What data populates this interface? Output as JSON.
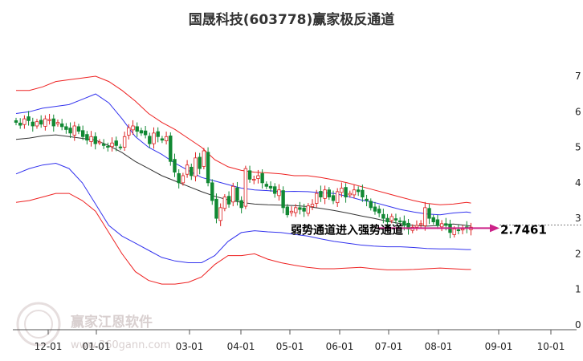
{
  "chart_data": {
    "type": "line",
    "title": "国晟科技(603778)赢家极反通道",
    "xlabel": "",
    "ylabel": "",
    "ylim": [
      0,
      7.25
    ],
    "y_ticks": [
      "0",
      "1",
      "2",
      "3",
      "4",
      "5",
      "6",
      "7"
    ],
    "x_ticks": [
      "12-01",
      "01-01",
      "03-01",
      "04-01",
      "05-01",
      "06-01",
      "07-01",
      "08-01",
      "09-01",
      "10-01"
    ],
    "x": [
      0,
      6,
      12,
      18,
      24,
      30,
      36,
      42,
      48,
      54,
      60,
      66,
      72,
      78,
      84,
      90,
      96,
      102,
      108,
      114,
      120,
      126,
      132,
      138,
      144,
      150,
      156,
      162,
      168,
      174,
      180,
      186,
      192,
      198,
      204,
      206
    ],
    "series": [
      {
        "color": "#333333",
        "values": [
          5.22,
          5.26,
          5.32,
          5.35,
          5.3,
          5.25,
          5.2,
          5.05,
          4.85,
          4.6,
          4.4,
          4.2,
          4.05,
          3.9,
          3.75,
          3.62,
          3.52,
          3.45,
          3.4,
          3.38,
          3.37,
          3.36,
          3.33,
          3.28,
          3.22,
          3.15,
          3.07,
          3.0,
          2.92,
          2.85,
          2.8,
          2.78,
          2.8,
          2.84,
          2.8,
          2.78
        ]
      },
      {
        "color": "#3333ee",
        "values": [
          5.95,
          6.0,
          6.1,
          6.15,
          6.2,
          6.35,
          6.5,
          6.25,
          5.8,
          5.3,
          5.0,
          4.8,
          4.55,
          4.35,
          4.15,
          4.05,
          3.95,
          3.85,
          3.8,
          3.78,
          3.75,
          3.76,
          3.75,
          3.72,
          3.7,
          3.62,
          3.52,
          3.45,
          3.35,
          3.25,
          3.18,
          3.12,
          3.1,
          3.15,
          3.18,
          3.16
        ]
      },
      {
        "color": "#3333ee",
        "values": [
          4.25,
          4.4,
          4.5,
          4.55,
          4.4,
          4.0,
          3.4,
          2.8,
          2.5,
          2.3,
          2.1,
          1.9,
          1.8,
          1.75,
          1.75,
          1.95,
          2.35,
          2.6,
          2.65,
          2.62,
          2.6,
          2.55,
          2.5,
          2.42,
          2.35,
          2.3,
          2.25,
          2.22,
          2.2,
          2.2,
          2.18,
          2.15,
          2.14,
          2.14,
          2.12,
          2.12
        ]
      },
      {
        "color": "#ee2222",
        "values": [
          6.6,
          6.6,
          6.7,
          6.85,
          6.9,
          6.95,
          7.0,
          6.85,
          6.6,
          6.3,
          5.95,
          5.7,
          5.5,
          5.25,
          5.0,
          4.65,
          4.45,
          4.35,
          4.3,
          4.28,
          4.25,
          4.2,
          4.2,
          4.15,
          4.08,
          4.0,
          3.9,
          3.8,
          3.7,
          3.6,
          3.5,
          3.42,
          3.38,
          3.4,
          3.45,
          3.43
        ]
      },
      {
        "color": "#ee2222",
        "values": [
          3.45,
          3.5,
          3.6,
          3.7,
          3.7,
          3.5,
          3.2,
          2.6,
          2.0,
          1.5,
          1.25,
          1.15,
          1.15,
          1.2,
          1.35,
          1.7,
          1.95,
          1.95,
          2.0,
          1.85,
          1.75,
          1.68,
          1.62,
          1.58,
          1.58,
          1.6,
          1.62,
          1.58,
          1.55,
          1.55,
          1.56,
          1.58,
          1.6,
          1.58,
          1.56,
          1.56
        ]
      }
    ],
    "candles_close": [
      5.7,
      5.62,
      5.8,
      5.75,
      5.6,
      5.72,
      5.65,
      5.8,
      5.78,
      5.6,
      5.7,
      5.58,
      5.5,
      5.4,
      5.6,
      5.45,
      5.3,
      5.2,
      5.3,
      5.1,
      5.15,
      5.05,
      5.0,
      5.12,
      5.05,
      5.0,
      5.3,
      5.55,
      5.6,
      5.45,
      5.4,
      5.35,
      5.1,
      5.4,
      5.3,
      5.2,
      5.3,
      4.6,
      4.3,
      4.0,
      4.2,
      4.5,
      4.2,
      4.7,
      4.4,
      4.9,
      4.0,
      3.5,
      3.0,
      3.3,
      3.6,
      3.4,
      3.9,
      3.5,
      3.3,
      4.4,
      4.1,
      4.1,
      4.2,
      4.0,
      3.9,
      3.85,
      3.7,
      3.8,
      3.3,
      3.1,
      3.2,
      3.3,
      3.25,
      3.2,
      3.35,
      3.4,
      3.7,
      3.6,
      3.8,
      3.6,
      3.5,
      3.75,
      3.85,
      3.6,
      3.7,
      3.8,
      3.75,
      3.6,
      3.5,
      3.3,
      3.2,
      3.15,
      3.0,
      2.9,
      3.05,
      2.95,
      2.9,
      2.8,
      2.7,
      2.75,
      2.8,
      2.85,
      3.3,
      3.0,
      2.9,
      2.8,
      2.85,
      2.8,
      2.6,
      2.7,
      2.65,
      2.7,
      2.72,
      2.75
    ],
    "annotation": "弱势通道进入强势通道",
    "last_value": "2.7461",
    "annotation_color": "#cc2288",
    "up_color": "#dd2222",
    "down_color": "#118833",
    "grid": false,
    "watermark": {
      "text": "赢家江恩软件",
      "url": "www.360gann.com"
    }
  }
}
